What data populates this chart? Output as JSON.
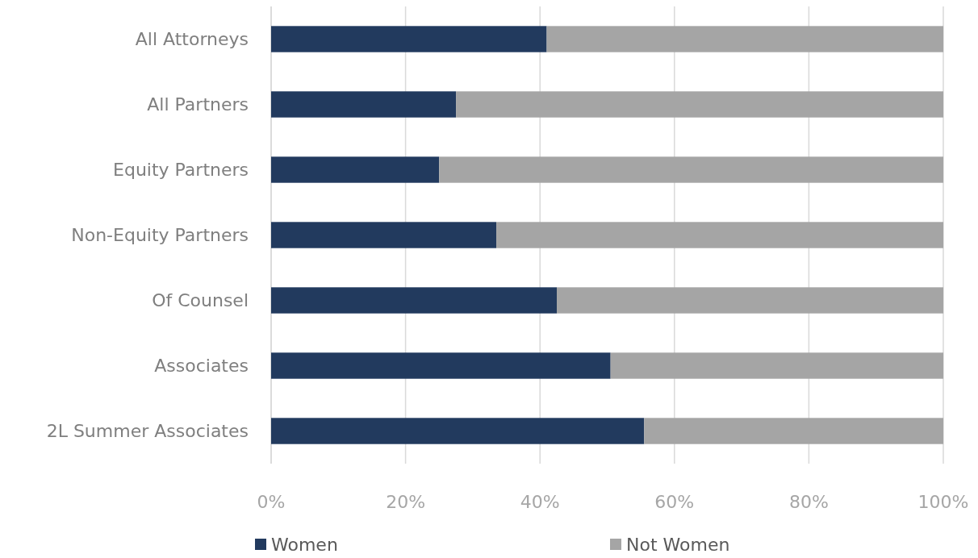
{
  "chart_data": {
    "type": "bar",
    "orientation": "horizontal",
    "stacked": true,
    "categories": [
      "All Attorneys",
      "All Partners",
      "Equity Partners",
      "Non-Equity Partners",
      "Of Counsel",
      "Associates",
      "2L Summer Associates"
    ],
    "series": [
      {
        "name": "Women",
        "color": "#223a5e",
        "values": [
          41,
          27.5,
          25,
          33.5,
          42.5,
          50.5,
          55.5
        ]
      },
      {
        "name": "Not Women",
        "color": "#a5a5a5",
        "values": [
          59,
          72.5,
          75,
          66.5,
          57.5,
          49.5,
          44.5
        ]
      }
    ],
    "xlim": [
      0,
      100
    ],
    "xticks": [
      {
        "value": 0,
        "label": "0%"
      },
      {
        "value": 20,
        "label": "20%"
      },
      {
        "value": 40,
        "label": "40%"
      },
      {
        "value": 60,
        "label": "60%"
      },
      {
        "value": 80,
        "label": "80%"
      },
      {
        "value": 100,
        "label": "100%"
      }
    ],
    "grid": "x",
    "legend": "bottom left"
  }
}
